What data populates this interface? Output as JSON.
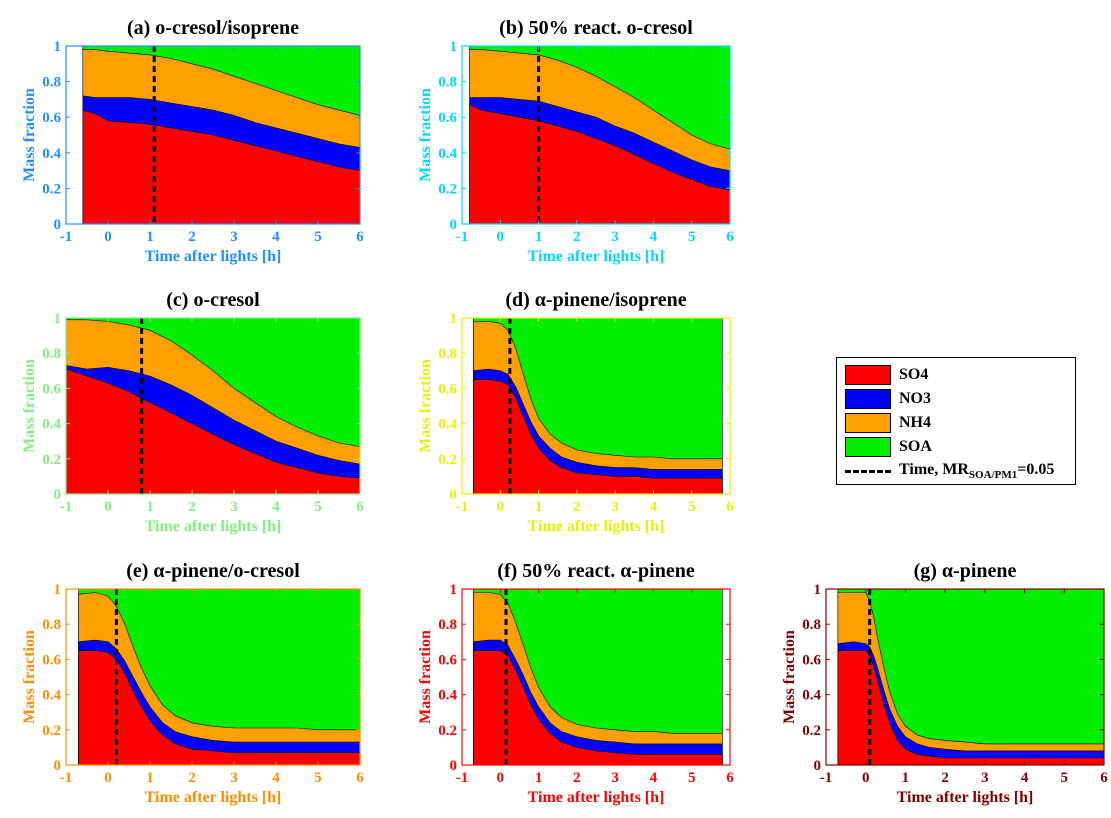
{
  "legend": {
    "items": [
      {
        "label": "SO4",
        "color": "#ff0000"
      },
      {
        "label": "NO3",
        "color": "#0000ff"
      },
      {
        "label": "NH4",
        "color": "#ffa000"
      },
      {
        "label": "SOA",
        "color": "#00ee00"
      }
    ],
    "line_label_prefix": "Time, MR",
    "line_label_sub": "SOA/PM1",
    "line_label_suffix": "=0.05"
  },
  "chart_data": [
    {
      "type": "area",
      "title": "(a) o-cresol/isoprene",
      "xlabel": "Time after lights [h]",
      "ylabel": "Mass fraction",
      "axis_color": "#1e90ff",
      "xlim": [
        -1,
        6
      ],
      "ylim": [
        0,
        1
      ],
      "x_ticks": [
        -1,
        0,
        1,
        2,
        3,
        4,
        5,
        6
      ],
      "y_ticks": [
        0,
        0.2,
        0.4,
        0.6,
        0.8,
        1
      ],
      "stacking": "cumulative",
      "grid": false,
      "marker_time": 1.1,
      "x": [
        -0.6,
        -0.3,
        0,
        0.5,
        1,
        1.5,
        2,
        2.5,
        3,
        3.5,
        4,
        4.5,
        5,
        5.5,
        6
      ],
      "series": [
        {
          "name": "SO4",
          "values": [
            0.64,
            0.62,
            0.58,
            0.57,
            0.56,
            0.54,
            0.52,
            0.5,
            0.47,
            0.44,
            0.41,
            0.38,
            0.35,
            0.32,
            0.3
          ]
        },
        {
          "name": "NO3",
          "values": [
            0.72,
            0.71,
            0.71,
            0.71,
            0.7,
            0.68,
            0.66,
            0.64,
            0.61,
            0.57,
            0.54,
            0.51,
            0.48,
            0.45,
            0.43
          ]
        },
        {
          "name": "NH4",
          "values": [
            0.98,
            0.98,
            0.97,
            0.96,
            0.95,
            0.93,
            0.9,
            0.87,
            0.83,
            0.79,
            0.75,
            0.71,
            0.67,
            0.64,
            0.61
          ]
        },
        {
          "name": "SOA",
          "values": [
            1,
            1,
            1,
            1,
            1,
            1,
            1,
            1,
            1,
            1,
            1,
            1,
            1,
            1,
            1
          ]
        }
      ]
    },
    {
      "type": "area",
      "title": "(b) 50% react. o-cresol",
      "xlabel": "Time after lights [h]",
      "ylabel": "Mass fraction",
      "axis_color": "#00d8ff",
      "xlim": [
        -1,
        6
      ],
      "ylim": [
        0,
        1
      ],
      "x_ticks": [
        -1,
        0,
        1,
        2,
        3,
        4,
        5,
        6
      ],
      "y_ticks": [
        0,
        0.2,
        0.4,
        0.6,
        0.8,
        1
      ],
      "stacking": "cumulative",
      "grid": false,
      "marker_time": 1.0,
      "x": [
        -0.8,
        -0.5,
        0,
        0.5,
        1,
        1.5,
        2,
        2.5,
        3,
        3.5,
        4,
        4.5,
        5,
        5.5,
        6
      ],
      "series": [
        {
          "name": "SO4",
          "values": [
            0.67,
            0.64,
            0.62,
            0.6,
            0.58,
            0.55,
            0.52,
            0.48,
            0.44,
            0.39,
            0.34,
            0.29,
            0.25,
            0.21,
            0.19
          ]
        },
        {
          "name": "NO3",
          "values": [
            0.71,
            0.71,
            0.71,
            0.7,
            0.69,
            0.66,
            0.63,
            0.6,
            0.55,
            0.51,
            0.46,
            0.41,
            0.36,
            0.32,
            0.3
          ]
        },
        {
          "name": "NH4",
          "values": [
            0.98,
            0.98,
            0.97,
            0.96,
            0.95,
            0.92,
            0.88,
            0.83,
            0.77,
            0.71,
            0.64,
            0.57,
            0.5,
            0.45,
            0.42
          ]
        },
        {
          "name": "SOA",
          "values": [
            1,
            1,
            1,
            1,
            1,
            1,
            1,
            1,
            1,
            1,
            1,
            1,
            1,
            1,
            1
          ]
        }
      ]
    },
    {
      "type": "area",
      "title": "(c) o-cresol",
      "xlabel": "Time after lights [h]",
      "ylabel": "Mass fraction",
      "axis_color": "#80ee80",
      "xlim": [
        -1,
        6
      ],
      "ylim": [
        0,
        1
      ],
      "x_ticks": [
        -1,
        0,
        1,
        2,
        3,
        4,
        5,
        6
      ],
      "y_ticks": [
        0,
        0.2,
        0.4,
        0.6,
        0.8,
        1
      ],
      "stacking": "cumulative",
      "grid": false,
      "marker_time": 0.8,
      "x": [
        -1,
        -0.5,
        0,
        0.5,
        1,
        1.5,
        2,
        2.5,
        3,
        3.5,
        4,
        4.5,
        5,
        5.5,
        6
      ],
      "series": [
        {
          "name": "SO4",
          "values": [
            0.71,
            0.67,
            0.63,
            0.58,
            0.52,
            0.46,
            0.4,
            0.34,
            0.28,
            0.23,
            0.18,
            0.15,
            0.12,
            0.1,
            0.09
          ]
        },
        {
          "name": "NO3",
          "values": [
            0.73,
            0.71,
            0.72,
            0.7,
            0.67,
            0.62,
            0.56,
            0.49,
            0.42,
            0.36,
            0.3,
            0.26,
            0.22,
            0.19,
            0.17
          ]
        },
        {
          "name": "NH4",
          "values": [
            0.99,
            0.99,
            0.98,
            0.96,
            0.93,
            0.87,
            0.79,
            0.7,
            0.6,
            0.52,
            0.44,
            0.38,
            0.33,
            0.29,
            0.27
          ]
        },
        {
          "name": "SOA",
          "values": [
            1,
            1,
            1,
            1,
            1,
            1,
            1,
            1,
            1,
            1,
            1,
            1,
            1,
            1,
            1
          ]
        }
      ]
    },
    {
      "type": "area",
      "title": "(d) α-pinene/isoprene",
      "xlabel": "Time after lights [h]",
      "ylabel": "Mass fraction",
      "axis_color": "#e8f000",
      "xlim": [
        -1,
        6
      ],
      "ylim": [
        0,
        1
      ],
      "x_ticks": [
        -1,
        0,
        1,
        2,
        3,
        4,
        5,
        6
      ],
      "y_ticks": [
        0,
        0.2,
        0.4,
        0.6,
        0.8,
        1
      ],
      "stacking": "cumulative",
      "grid": false,
      "marker_time": 0.25,
      "x": [
        -0.7,
        -0.3,
        0,
        0.2,
        0.4,
        0.6,
        0.8,
        1,
        1.3,
        1.6,
        2,
        2.5,
        3,
        3.5,
        4,
        4.5,
        5,
        5.8
      ],
      "series": [
        {
          "name": "SO4",
          "values": [
            0.65,
            0.65,
            0.64,
            0.62,
            0.55,
            0.44,
            0.34,
            0.26,
            0.19,
            0.15,
            0.12,
            0.11,
            0.1,
            0.1,
            0.09,
            0.09,
            0.09,
            0.09
          ]
        },
        {
          "name": "NO3",
          "values": [
            0.7,
            0.71,
            0.7,
            0.68,
            0.61,
            0.51,
            0.41,
            0.33,
            0.26,
            0.21,
            0.18,
            0.16,
            0.15,
            0.15,
            0.14,
            0.14,
            0.14,
            0.14
          ]
        },
        {
          "name": "NH4",
          "values": [
            0.98,
            0.98,
            0.97,
            0.93,
            0.83,
            0.68,
            0.54,
            0.43,
            0.34,
            0.29,
            0.25,
            0.23,
            0.22,
            0.21,
            0.21,
            0.2,
            0.2,
            0.2
          ]
        },
        {
          "name": "SOA",
          "values": [
            1,
            1,
            1,
            1,
            1,
            1,
            1,
            1,
            1,
            1,
            1,
            1,
            1,
            1,
            1,
            1,
            1,
            1
          ]
        }
      ]
    },
    {
      "type": "area",
      "title": "(e) α-pinene/o-cresol",
      "xlabel": "Time after lights [h]",
      "ylabel": "Mass fraction",
      "axis_color": "#ff8c00",
      "xlim": [
        -1,
        6
      ],
      "ylim": [
        0,
        1
      ],
      "x_ticks": [
        -1,
        0,
        1,
        2,
        3,
        4,
        5,
        6
      ],
      "y_ticks": [
        0,
        0.2,
        0.4,
        0.6,
        0.8,
        1
      ],
      "stacking": "cumulative",
      "grid": false,
      "marker_time": 0.2,
      "x": [
        -0.7,
        -0.3,
        0,
        0.2,
        0.4,
        0.6,
        0.8,
        1,
        1.3,
        1.6,
        2,
        2.5,
        3,
        3.5,
        4,
        4.5,
        5,
        6
      ],
      "series": [
        {
          "name": "SO4",
          "values": [
            0.65,
            0.65,
            0.64,
            0.6,
            0.52,
            0.42,
            0.33,
            0.25,
            0.17,
            0.12,
            0.09,
            0.08,
            0.07,
            0.07,
            0.07,
            0.07,
            0.07,
            0.07
          ]
        },
        {
          "name": "NO3",
          "values": [
            0.7,
            0.71,
            0.7,
            0.66,
            0.59,
            0.5,
            0.41,
            0.33,
            0.24,
            0.19,
            0.16,
            0.14,
            0.13,
            0.13,
            0.13,
            0.13,
            0.13,
            0.13
          ]
        },
        {
          "name": "NH4",
          "values": [
            0.97,
            0.98,
            0.96,
            0.9,
            0.8,
            0.67,
            0.55,
            0.45,
            0.34,
            0.28,
            0.24,
            0.22,
            0.21,
            0.21,
            0.21,
            0.21,
            0.2,
            0.2
          ]
        },
        {
          "name": "SOA",
          "values": [
            1,
            1,
            1,
            1,
            1,
            1,
            1,
            1,
            1,
            1,
            1,
            1,
            1,
            1,
            1,
            1,
            1,
            1
          ]
        }
      ]
    },
    {
      "type": "area",
      "title": "(f) 50% react. α-pinene",
      "xlabel": "Time after lights [h]",
      "ylabel": "Mass fraction",
      "axis_color": "#ff0000",
      "xlim": [
        -1,
        6
      ],
      "ylim": [
        0,
        1
      ],
      "x_ticks": [
        -1,
        0,
        1,
        2,
        3,
        4,
        5,
        6
      ],
      "y_ticks": [
        0,
        0.2,
        0.4,
        0.6,
        0.8,
        1
      ],
      "stacking": "cumulative",
      "grid": false,
      "marker_time": 0.15,
      "x": [
        -0.7,
        -0.3,
        0,
        0.2,
        0.4,
        0.6,
        0.8,
        1,
        1.3,
        1.6,
        2,
        2.5,
        3,
        3.5,
        4,
        4.5,
        5,
        5.8
      ],
      "series": [
        {
          "name": "SO4",
          "values": [
            0.65,
            0.65,
            0.65,
            0.62,
            0.54,
            0.44,
            0.34,
            0.26,
            0.18,
            0.13,
            0.1,
            0.08,
            0.07,
            0.06,
            0.06,
            0.06,
            0.06,
            0.06
          ]
        },
        {
          "name": "NO3",
          "values": [
            0.7,
            0.71,
            0.71,
            0.68,
            0.6,
            0.51,
            0.41,
            0.33,
            0.24,
            0.19,
            0.16,
            0.14,
            0.13,
            0.12,
            0.12,
            0.12,
            0.12,
            0.12
          ]
        },
        {
          "name": "NH4",
          "values": [
            0.98,
            0.98,
            0.97,
            0.92,
            0.81,
            0.68,
            0.55,
            0.44,
            0.33,
            0.27,
            0.23,
            0.21,
            0.2,
            0.19,
            0.19,
            0.18,
            0.18,
            0.18
          ]
        },
        {
          "name": "SOA",
          "values": [
            1,
            1,
            1,
            1,
            1,
            1,
            1,
            1,
            1,
            1,
            1,
            1,
            1,
            1,
            1,
            1,
            1,
            1
          ]
        }
      ]
    },
    {
      "type": "area",
      "title": "(g) α-pinene",
      "xlabel": "Time after lights [h]",
      "ylabel": "Mass fraction",
      "axis_color": "#800000",
      "xlim": [
        -1,
        6
      ],
      "ylim": [
        0,
        1
      ],
      "x_ticks": [
        -1,
        0,
        1,
        2,
        3,
        4,
        5,
        6
      ],
      "y_ticks": [
        0,
        0.2,
        0.4,
        0.6,
        0.8,
        1
      ],
      "stacking": "cumulative",
      "grid": false,
      "marker_time": 0.1,
      "x": [
        -0.7,
        -0.3,
        0,
        0.1,
        0.2,
        0.3,
        0.45,
        0.6,
        0.8,
        1,
        1.3,
        1.6,
        2,
        2.5,
        3,
        4,
        5,
        6
      ],
      "series": [
        {
          "name": "SO4",
          "values": [
            0.65,
            0.65,
            0.65,
            0.62,
            0.56,
            0.48,
            0.35,
            0.24,
            0.14,
            0.09,
            0.06,
            0.05,
            0.04,
            0.04,
            0.04,
            0.04,
            0.04,
            0.04
          ]
        },
        {
          "name": "NO3",
          "values": [
            0.69,
            0.7,
            0.69,
            0.67,
            0.62,
            0.55,
            0.43,
            0.32,
            0.22,
            0.16,
            0.12,
            0.1,
            0.09,
            0.08,
            0.08,
            0.08,
            0.08,
            0.08
          ]
        },
        {
          "name": "NH4",
          "values": [
            0.98,
            0.98,
            0.98,
            0.93,
            0.84,
            0.72,
            0.56,
            0.42,
            0.29,
            0.22,
            0.17,
            0.15,
            0.14,
            0.13,
            0.12,
            0.12,
            0.12,
            0.12
          ]
        },
        {
          "name": "SOA",
          "values": [
            1,
            1,
            1,
            1,
            1,
            1,
            1,
            1,
            1,
            1,
            1,
            1,
            1,
            1,
            1,
            1,
            1,
            1
          ]
        }
      ]
    }
  ]
}
